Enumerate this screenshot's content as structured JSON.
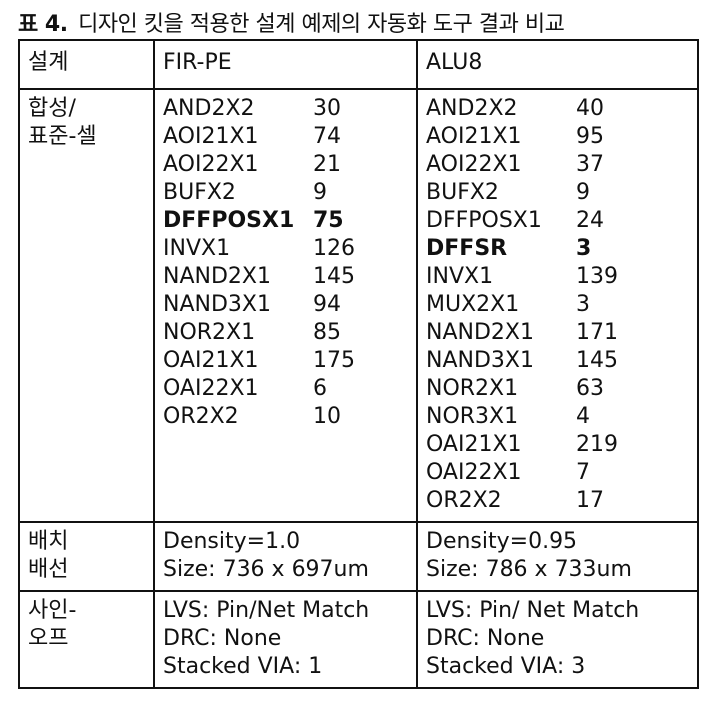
{
  "caption": {
    "label": "표 4.",
    "text": "디자인 킷을 적용한 설계 예제의 자동화 도구 결과 비교"
  },
  "table": {
    "header": {
      "col1": "설계",
      "col2": "FIR-PE",
      "col3": "ALU8"
    },
    "synthesis": {
      "label": [
        "합성/",
        "표준-셀"
      ],
      "fir_pe": [
        {
          "cell": "AND2X2",
          "count": "30",
          "bold": false
        },
        {
          "cell": "AOI21X1",
          "count": "74",
          "bold": false
        },
        {
          "cell": "AOI22X1",
          "count": "21",
          "bold": false
        },
        {
          "cell": "BUFX2",
          "count": "9",
          "bold": false
        },
        {
          "cell": "DFFPOSX1",
          "count": "75",
          "bold": true
        },
        {
          "cell": "INVX1",
          "count": "126",
          "bold": false
        },
        {
          "cell": "NAND2X1",
          "count": "145",
          "bold": false
        },
        {
          "cell": "NAND3X1",
          "count": "94",
          "bold": false
        },
        {
          "cell": "NOR2X1",
          "count": "85",
          "bold": false
        },
        {
          "cell": "OAI21X1",
          "count": "175",
          "bold": false
        },
        {
          "cell": "OAI22X1",
          "count": "6",
          "bold": false
        },
        {
          "cell": "OR2X2",
          "count": "10",
          "bold": false
        }
      ],
      "alu8": [
        {
          "cell": "AND2X2",
          "count": "40",
          "bold": false
        },
        {
          "cell": "AOI21X1",
          "count": "95",
          "bold": false
        },
        {
          "cell": "AOI22X1",
          "count": "37",
          "bold": false
        },
        {
          "cell": "BUFX2",
          "count": "9",
          "bold": false
        },
        {
          "cell": "DFFPOSX1",
          "count": "24",
          "bold": false
        },
        {
          "cell": "DFFSR",
          "count": "3",
          "bold": true
        },
        {
          "cell": "INVX1",
          "count": "139",
          "bold": false
        },
        {
          "cell": "MUX2X1",
          "count": "3",
          "bold": false
        },
        {
          "cell": "NAND2X1",
          "count": "171",
          "bold": false
        },
        {
          "cell": "NAND3X1",
          "count": "145",
          "bold": false
        },
        {
          "cell": "NOR2X1",
          "count": "63",
          "bold": false
        },
        {
          "cell": "NOR3X1",
          "count": "4",
          "bold": false
        },
        {
          "cell": "OAI21X1",
          "count": "219",
          "bold": false
        },
        {
          "cell": "OAI22X1",
          "count": "7",
          "bold": false
        },
        {
          "cell": "OR2X2",
          "count": "17",
          "bold": false
        }
      ]
    },
    "placement": {
      "label": [
        "배치",
        "배선"
      ],
      "fir_pe": [
        "Density=1.0",
        "Size: 736 x 697um"
      ],
      "alu8": [
        "Density=0.95",
        "Size: 786 x 733um"
      ]
    },
    "signoff": {
      "label": [
        "사인-",
        "오프"
      ],
      "fir_pe": [
        "LVS: Pin/Net Match",
        "DRC: None",
        "Stacked VIA: 1"
      ],
      "alu8": [
        "LVS: Pin/ Net Match",
        "DRC: None",
        "Stacked VIA: 3"
      ]
    }
  }
}
